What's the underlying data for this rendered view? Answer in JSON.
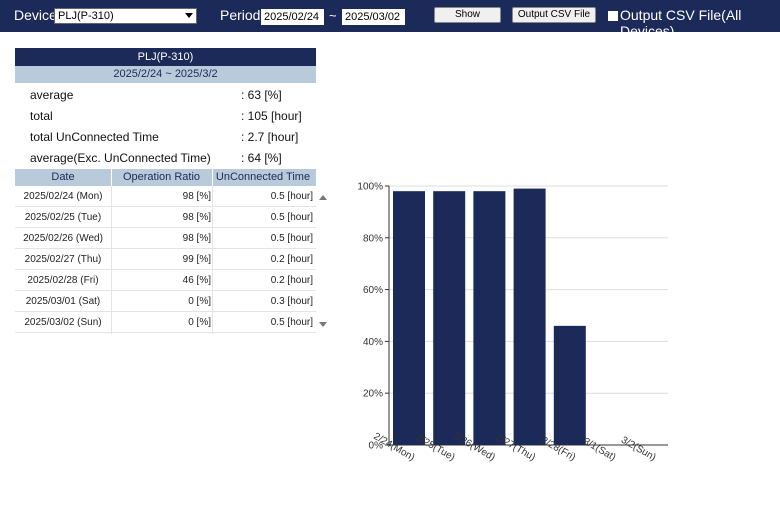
{
  "toolbar": {
    "device_label": "Device",
    "device_value": "PLJ(P-310)",
    "period_label": "Period",
    "start_date": "2025/02/24",
    "tilde": "~",
    "end_date": "2025/03/02",
    "show_label": "Show",
    "csv_label": "Output CSV File",
    "csv_all_label": "Output CSV File(All Devices)"
  },
  "summary": {
    "title": "PLJ(P-310)",
    "period": "2025/2/24 ~  2025/3/2",
    "rows": [
      {
        "label": "average",
        "value": ": 63 [%]"
      },
      {
        "label": "total",
        "value": ": 105 [hour]"
      },
      {
        "label": "total UnConnected Time",
        "value": ": 2.7 [hour]"
      },
      {
        "label": "average(Exc. UnConnected Time)",
        "value": ": 64 [%]"
      }
    ]
  },
  "table": {
    "headers": [
      "Date",
      "Operation Ratio",
      "UnConnected Time"
    ],
    "rows": [
      [
        "2025/02/24 (Mon)",
        "98 [%]",
        "0.5 [hour]"
      ],
      [
        "2025/02/25 (Tue)",
        "98 [%]",
        "0.5 [hour]"
      ],
      [
        "2025/02/26 (Wed)",
        "98 [%]",
        "0.5 [hour]"
      ],
      [
        "2025/02/27 (Thu)",
        "99 [%]",
        "0.2 [hour]"
      ],
      [
        "2025/02/28 (Fri)",
        "46 [%]",
        "0.2 [hour]"
      ],
      [
        "2025/03/01 (Sat)",
        "0 [%]",
        "0.3 [hour]"
      ],
      [
        "2025/03/02 (Sun)",
        "0 [%]",
        "0.5 [hour]"
      ]
    ]
  },
  "chart_data": {
    "type": "bar",
    "categories": [
      "2/24(Mon)",
      "2/25(Tue)",
      "2/26(Wed)",
      "2/27(Thu)",
      "2/28(Fri)",
      "3/1(Sat)",
      "3/2(Sun)"
    ],
    "values": [
      98,
      98,
      98,
      99,
      46,
      0,
      0
    ],
    "ylim": [
      0,
      100
    ],
    "yticks": [
      "0%",
      "20%",
      "40%",
      "60%",
      "80%",
      "100%"
    ],
    "grid": true,
    "bar_color": "#1c2a5a"
  },
  "colors": {
    "header_bg": "#1c2a5a",
    "subheader_bg": "#b9cadb"
  }
}
